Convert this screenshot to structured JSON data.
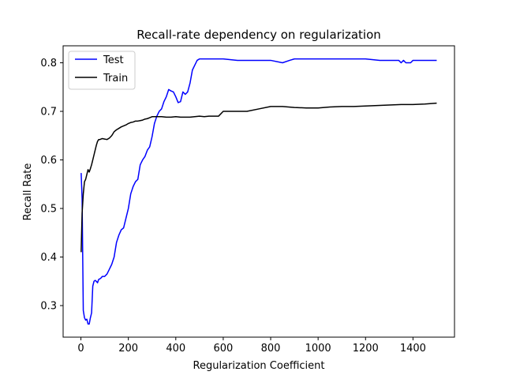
{
  "chart_data": {
    "type": "line",
    "title": "Recall-rate dependency on regularization",
    "xlabel": "Regularization Coefficient",
    "ylabel": "Recall Rate",
    "xlim": [
      -75,
      1575
    ],
    "ylim": [
      0.235,
      0.835
    ],
    "xticks": [
      0,
      200,
      400,
      600,
      800,
      1000,
      1200,
      1400
    ],
    "yticks": [
      0.3,
      0.4,
      0.5,
      0.6,
      0.7,
      0.8
    ],
    "grid": false,
    "legend": "top-left",
    "series": [
      {
        "name": "Test",
        "color": "#0000ff",
        "x": [
          1,
          5,
          10,
          15,
          20,
          25,
          30,
          35,
          40,
          45,
          50,
          55,
          60,
          65,
          70,
          75,
          80,
          85,
          90,
          95,
          100,
          110,
          120,
          130,
          140,
          150,
          160,
          170,
          180,
          190,
          200,
          210,
          220,
          230,
          240,
          250,
          260,
          270,
          280,
          290,
          300,
          310,
          320,
          330,
          340,
          350,
          360,
          370,
          380,
          390,
          400,
          410,
          420,
          430,
          440,
          450,
          460,
          470,
          480,
          490,
          500,
          520,
          600,
          660,
          700,
          800,
          850,
          880,
          900,
          1000,
          1100,
          1200,
          1260,
          1300,
          1340,
          1350,
          1360,
          1370,
          1380,
          1390,
          1400,
          1420,
          1500
        ],
        "y": [
          0.573,
          0.52,
          0.29,
          0.275,
          0.27,
          0.272,
          0.262,
          0.262,
          0.275,
          0.285,
          0.34,
          0.35,
          0.352,
          0.35,
          0.347,
          0.354,
          0.355,
          0.357,
          0.36,
          0.36,
          0.36,
          0.365,
          0.375,
          0.385,
          0.4,
          0.43,
          0.445,
          0.456,
          0.46,
          0.48,
          0.5,
          0.53,
          0.545,
          0.555,
          0.56,
          0.59,
          0.6,
          0.607,
          0.62,
          0.627,
          0.648,
          0.675,
          0.69,
          0.7,
          0.705,
          0.72,
          0.73,
          0.745,
          0.742,
          0.74,
          0.73,
          0.718,
          0.72,
          0.74,
          0.735,
          0.74,
          0.758,
          0.785,
          0.795,
          0.805,
          0.808,
          0.808,
          0.808,
          0.805,
          0.805,
          0.805,
          0.8,
          0.805,
          0.808,
          0.808,
          0.808,
          0.808,
          0.805,
          0.805,
          0.805,
          0.8,
          0.805,
          0.8,
          0.8,
          0.8,
          0.805,
          0.805,
          0.805
        ]
      },
      {
        "name": "Train",
        "color": "#000000",
        "x": [
          1,
          5,
          10,
          15,
          20,
          25,
          30,
          35,
          40,
          45,
          50,
          55,
          60,
          65,
          70,
          75,
          80,
          90,
          100,
          110,
          120,
          130,
          140,
          150,
          160,
          170,
          180,
          190,
          200,
          210,
          220,
          230,
          240,
          250,
          260,
          270,
          280,
          290,
          300,
          320,
          340,
          360,
          380,
          400,
          420,
          440,
          460,
          480,
          500,
          520,
          540,
          560,
          580,
          600,
          650,
          700,
          750,
          800,
          850,
          900,
          950,
          1000,
          1050,
          1100,
          1150,
          1200,
          1250,
          1300,
          1350,
          1400,
          1450,
          1500
        ],
        "y": [
          0.41,
          0.49,
          0.53,
          0.555,
          0.56,
          0.57,
          0.58,
          0.575,
          0.582,
          0.59,
          0.6,
          0.61,
          0.62,
          0.63,
          0.638,
          0.642,
          0.642,
          0.644,
          0.643,
          0.642,
          0.645,
          0.65,
          0.658,
          0.662,
          0.665,
          0.668,
          0.67,
          0.672,
          0.675,
          0.677,
          0.678,
          0.68,
          0.68,
          0.681,
          0.682,
          0.684,
          0.685,
          0.687,
          0.689,
          0.689,
          0.689,
          0.688,
          0.688,
          0.689,
          0.688,
          0.688,
          0.688,
          0.689,
          0.69,
          0.689,
          0.69,
          0.69,
          0.69,
          0.7,
          0.7,
          0.7,
          0.705,
          0.71,
          0.71,
          0.708,
          0.707,
          0.707,
          0.709,
          0.71,
          0.71,
          0.711,
          0.712,
          0.713,
          0.714,
          0.714,
          0.715,
          0.717
        ]
      }
    ]
  }
}
